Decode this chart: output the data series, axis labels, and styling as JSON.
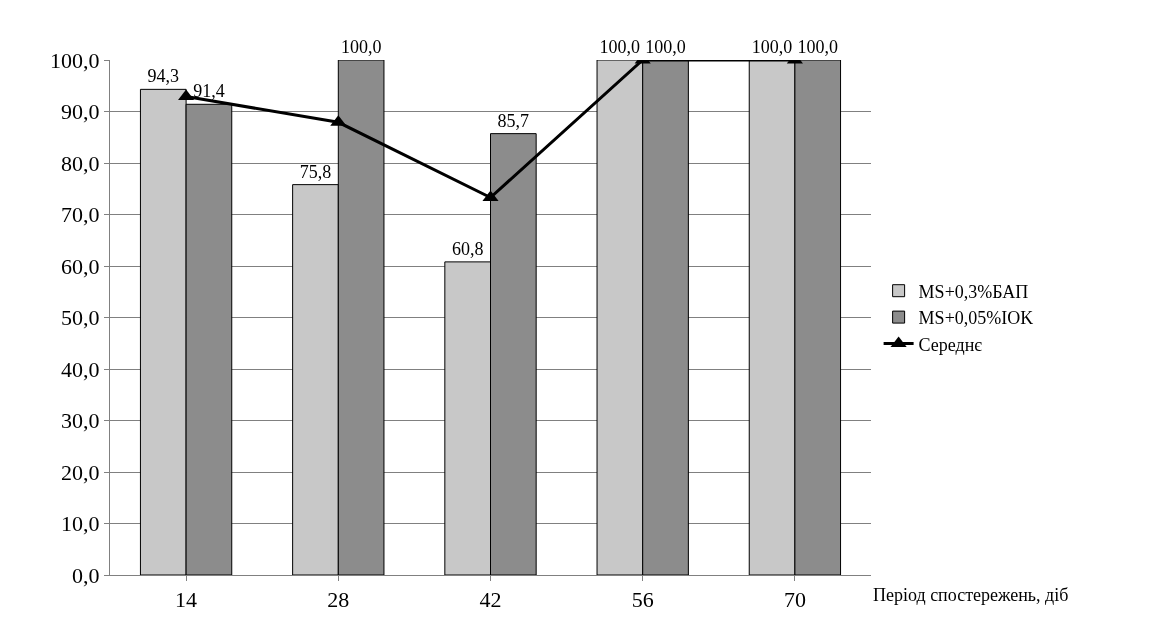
{
  "chart_data": {
    "type": "bar",
    "categories": [
      "14",
      "28",
      "42",
      "56",
      "70"
    ],
    "xlabel": "Період спостережень, діб",
    "series": [
      {
        "name": "MS+0,3%БАП",
        "color": "#c8c8c8",
        "values": [
          94.3,
          75.8,
          60.8,
          100.0,
          100.0
        ],
        "value_labels": [
          "94,3",
          "75,8",
          "60,8",
          "100,0",
          "100,0"
        ]
      },
      {
        "name": "MS+0,05%IOK",
        "color": "#8c8c8c",
        "values": [
          91.4,
          100.0,
          85.7,
          100.0,
          100.0
        ],
        "value_labels": [
          "91,4",
          "100,0",
          "85,7",
          "100,0",
          "100,0"
        ]
      },
      {
        "name": "Середнє",
        "type": "line",
        "color": "#000000",
        "values": [
          92.9,
          87.9,
          73.3,
          100.0,
          100.0
        ],
        "marker": "triangle"
      }
    ],
    "ylim": [
      0,
      100
    ],
    "yticks": [
      {
        "value": 0,
        "label": "0,0"
      },
      {
        "value": 10,
        "label": "10,0"
      },
      {
        "value": 20,
        "label": "20,0"
      },
      {
        "value": 30,
        "label": "30,0"
      },
      {
        "value": 40,
        "label": "40,0"
      },
      {
        "value": 50,
        "label": "50,0"
      },
      {
        "value": 60,
        "label": "60,0"
      },
      {
        "value": 70,
        "label": "70,0"
      },
      {
        "value": 80,
        "label": "80,0"
      },
      {
        "value": 90,
        "label": "90,0"
      },
      {
        "value": 100,
        "label": "100,0"
      }
    ],
    "grid": "y",
    "legend": "right"
  }
}
